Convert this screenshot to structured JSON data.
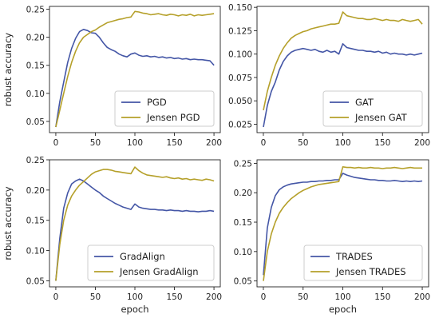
{
  "chart_data": [
    {
      "type": "line",
      "panel": "top-left",
      "title": "",
      "xlabel": "",
      "ylabel": "robust accuracy",
      "xlim": [
        -8,
        208
      ],
      "ylim": [
        0.03,
        0.255
      ],
      "xticks": [
        0,
        50,
        100,
        150,
        200
      ],
      "yticks": [
        0.05,
        0.1,
        0.15,
        0.2,
        0.25
      ],
      "ytick_labels": [
        "0.05",
        "0.10",
        "0.15",
        "0.20",
        "0.25"
      ],
      "legend_position": "lower-right",
      "grid": false,
      "series": [
        {
          "name": "PGD",
          "color": "#4456a6",
          "x": [
            0,
            5,
            10,
            15,
            20,
            25,
            30,
            35,
            40,
            45,
            50,
            55,
            60,
            65,
            70,
            75,
            80,
            85,
            90,
            95,
            100,
            105,
            110,
            115,
            120,
            125,
            130,
            135,
            140,
            145,
            150,
            155,
            160,
            165,
            170,
            175,
            180,
            185,
            190,
            195,
            200
          ],
          "y": [
            0.04,
            0.085,
            0.12,
            0.155,
            0.18,
            0.198,
            0.21,
            0.214,
            0.212,
            0.208,
            0.207,
            0.2,
            0.19,
            0.182,
            0.178,
            0.175,
            0.17,
            0.167,
            0.165,
            0.17,
            0.172,
            0.168,
            0.166,
            0.167,
            0.165,
            0.166,
            0.164,
            0.165,
            0.163,
            0.164,
            0.162,
            0.163,
            0.161,
            0.162,
            0.16,
            0.161,
            0.16,
            0.16,
            0.159,
            0.158,
            0.15
          ]
        },
        {
          "name": "Jensen PGD",
          "color": "#b5a02a",
          "x": [
            0,
            5,
            10,
            15,
            20,
            25,
            30,
            35,
            40,
            45,
            50,
            55,
            60,
            65,
            70,
            75,
            80,
            85,
            90,
            95,
            100,
            105,
            110,
            115,
            120,
            125,
            130,
            135,
            140,
            145,
            150,
            155,
            160,
            165,
            170,
            175,
            180,
            185,
            190,
            195,
            200
          ],
          "y": [
            0.04,
            0.07,
            0.1,
            0.13,
            0.155,
            0.175,
            0.19,
            0.2,
            0.205,
            0.21,
            0.213,
            0.218,
            0.222,
            0.226,
            0.228,
            0.23,
            0.232,
            0.233,
            0.235,
            0.236,
            0.246,
            0.245,
            0.243,
            0.242,
            0.24,
            0.241,
            0.242,
            0.24,
            0.239,
            0.241,
            0.24,
            0.238,
            0.24,
            0.239,
            0.241,
            0.238,
            0.24,
            0.239,
            0.24,
            0.241,
            0.242
          ]
        }
      ]
    },
    {
      "type": "line",
      "panel": "top-right",
      "title": "",
      "xlabel": "",
      "ylabel": "",
      "xlim": [
        -8,
        208
      ],
      "ylim": [
        0.016,
        0.151
      ],
      "xticks": [
        0,
        50,
        100,
        150,
        200
      ],
      "yticks": [
        0.025,
        0.05,
        0.075,
        0.1,
        0.125,
        0.15
      ],
      "ytick_labels": [
        "0.025",
        "0.050",
        "0.075",
        "0.100",
        "0.125",
        "0.150"
      ],
      "legend_position": "lower-right",
      "grid": false,
      "series": [
        {
          "name": "GAT",
          "color": "#4456a6",
          "x": [
            0,
            5,
            10,
            15,
            20,
            25,
            30,
            35,
            40,
            45,
            50,
            55,
            60,
            65,
            70,
            75,
            80,
            85,
            90,
            95,
            100,
            105,
            110,
            115,
            120,
            125,
            130,
            135,
            140,
            145,
            150,
            155,
            160,
            165,
            170,
            175,
            180,
            185,
            190,
            195,
            200
          ],
          "y": [
            0.022,
            0.045,
            0.06,
            0.07,
            0.083,
            0.092,
            0.098,
            0.102,
            0.104,
            0.105,
            0.106,
            0.105,
            0.104,
            0.105,
            0.103,
            0.102,
            0.104,
            0.102,
            0.103,
            0.1,
            0.111,
            0.107,
            0.106,
            0.105,
            0.104,
            0.104,
            0.103,
            0.103,
            0.102,
            0.103,
            0.101,
            0.102,
            0.1,
            0.101,
            0.1,
            0.1,
            0.099,
            0.1,
            0.099,
            0.1,
            0.101
          ]
        },
        {
          "name": "Jensen GAT",
          "color": "#b5a02a",
          "x": [
            0,
            5,
            10,
            15,
            20,
            25,
            30,
            35,
            40,
            45,
            50,
            55,
            60,
            65,
            70,
            75,
            80,
            85,
            90,
            95,
            100,
            105,
            110,
            115,
            120,
            125,
            130,
            135,
            140,
            145,
            150,
            155,
            160,
            165,
            170,
            175,
            180,
            185,
            190,
            195,
            200
          ],
          "y": [
            0.04,
            0.06,
            0.075,
            0.088,
            0.098,
            0.106,
            0.112,
            0.117,
            0.12,
            0.122,
            0.124,
            0.125,
            0.127,
            0.128,
            0.129,
            0.13,
            0.131,
            0.132,
            0.132,
            0.133,
            0.145,
            0.141,
            0.14,
            0.139,
            0.138,
            0.138,
            0.137,
            0.137,
            0.138,
            0.137,
            0.136,
            0.137,
            0.136,
            0.136,
            0.135,
            0.137,
            0.136,
            0.135,
            0.136,
            0.137,
            0.132
          ]
        }
      ]
    },
    {
      "type": "line",
      "panel": "bottom-left",
      "title": "",
      "xlabel": "epoch",
      "ylabel": "robust accuracy",
      "xlim": [
        -8,
        208
      ],
      "ylim": [
        0.04,
        0.25
      ],
      "xticks": [
        0,
        50,
        100,
        150,
        200
      ],
      "yticks": [
        0.05,
        0.1,
        0.15,
        0.2,
        0.25
      ],
      "ytick_labels": [
        "0.05",
        "0.10",
        "0.15",
        "0.20",
        "0.25"
      ],
      "legend_position": "lower-right",
      "grid": false,
      "series": [
        {
          "name": "GradAlign",
          "color": "#4456a6",
          "x": [
            0,
            5,
            10,
            15,
            20,
            25,
            30,
            35,
            40,
            45,
            50,
            55,
            60,
            65,
            70,
            75,
            80,
            85,
            90,
            95,
            100,
            105,
            110,
            115,
            120,
            125,
            130,
            135,
            140,
            145,
            150,
            155,
            160,
            165,
            170,
            175,
            180,
            185,
            190,
            195,
            200
          ],
          "y": [
            0.05,
            0.12,
            0.17,
            0.195,
            0.21,
            0.215,
            0.218,
            0.215,
            0.21,
            0.205,
            0.2,
            0.196,
            0.19,
            0.186,
            0.182,
            0.178,
            0.175,
            0.172,
            0.17,
            0.168,
            0.177,
            0.172,
            0.17,
            0.169,
            0.168,
            0.168,
            0.167,
            0.167,
            0.166,
            0.167,
            0.166,
            0.166,
            0.165,
            0.166,
            0.165,
            0.165,
            0.164,
            0.165,
            0.165,
            0.166,
            0.165
          ]
        },
        {
          "name": "Jensen GradAlign",
          "color": "#b5a02a",
          "x": [
            0,
            5,
            10,
            15,
            20,
            25,
            30,
            35,
            40,
            45,
            50,
            55,
            60,
            65,
            70,
            75,
            80,
            85,
            90,
            95,
            100,
            105,
            110,
            115,
            120,
            125,
            130,
            135,
            140,
            145,
            150,
            155,
            160,
            165,
            170,
            175,
            180,
            185,
            190,
            195,
            200
          ],
          "y": [
            0.05,
            0.11,
            0.15,
            0.175,
            0.19,
            0.2,
            0.208,
            0.214,
            0.22,
            0.226,
            0.23,
            0.232,
            0.234,
            0.234,
            0.233,
            0.231,
            0.23,
            0.229,
            0.228,
            0.227,
            0.238,
            0.232,
            0.228,
            0.225,
            0.224,
            0.223,
            0.222,
            0.221,
            0.222,
            0.22,
            0.219,
            0.22,
            0.218,
            0.219,
            0.217,
            0.218,
            0.217,
            0.216,
            0.218,
            0.217,
            0.215
          ]
        }
      ]
    },
    {
      "type": "line",
      "panel": "bottom-right",
      "title": "",
      "xlabel": "epoch",
      "ylabel": "",
      "xlim": [
        -8,
        208
      ],
      "ylim": [
        0.04,
        0.256
      ],
      "xticks": [
        0,
        50,
        100,
        150,
        200
      ],
      "yticks": [
        0.05,
        0.1,
        0.15,
        0.2,
        0.25
      ],
      "ytick_labels": [
        "0.05",
        "0.10",
        "0.15",
        "0.20",
        "0.25"
      ],
      "legend_position": "lower-right",
      "grid": false,
      "series": [
        {
          "name": "TRADES",
          "color": "#4456a6",
          "x": [
            0,
            5,
            10,
            15,
            20,
            25,
            30,
            35,
            40,
            45,
            50,
            55,
            60,
            65,
            70,
            75,
            80,
            85,
            90,
            95,
            100,
            105,
            110,
            115,
            120,
            125,
            130,
            135,
            140,
            145,
            150,
            155,
            160,
            165,
            170,
            175,
            180,
            185,
            190,
            195,
            200
          ],
          "y": [
            0.06,
            0.14,
            0.175,
            0.195,
            0.205,
            0.21,
            0.213,
            0.215,
            0.216,
            0.217,
            0.218,
            0.218,
            0.219,
            0.219,
            0.22,
            0.22,
            0.221,
            0.221,
            0.222,
            0.222,
            0.233,
            0.23,
            0.228,
            0.226,
            0.225,
            0.224,
            0.223,
            0.222,
            0.222,
            0.221,
            0.221,
            0.22,
            0.22,
            0.221,
            0.22,
            0.219,
            0.22,
            0.219,
            0.22,
            0.219,
            0.22
          ]
        },
        {
          "name": "Jensen TRADES",
          "color": "#b5a02a",
          "x": [
            0,
            5,
            10,
            15,
            20,
            25,
            30,
            35,
            40,
            45,
            50,
            55,
            60,
            65,
            70,
            75,
            80,
            85,
            90,
            95,
            100,
            105,
            110,
            115,
            120,
            125,
            130,
            135,
            140,
            145,
            150,
            155,
            160,
            165,
            170,
            175,
            180,
            185,
            190,
            195,
            200
          ],
          "y": [
            0.05,
            0.1,
            0.13,
            0.15,
            0.165,
            0.175,
            0.183,
            0.19,
            0.195,
            0.2,
            0.204,
            0.207,
            0.21,
            0.212,
            0.214,
            0.215,
            0.216,
            0.217,
            0.218,
            0.219,
            0.244,
            0.243,
            0.243,
            0.242,
            0.243,
            0.242,
            0.242,
            0.243,
            0.242,
            0.242,
            0.241,
            0.242,
            0.242,
            0.243,
            0.242,
            0.241,
            0.242,
            0.243,
            0.242,
            0.242,
            0.242
          ]
        }
      ]
    }
  ]
}
